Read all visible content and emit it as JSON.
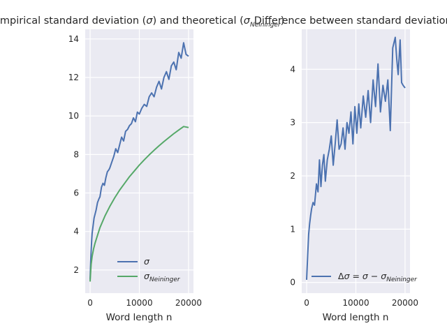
{
  "chart_data": [
    {
      "type": "line",
      "title": "Empirical standard deviation (σ) and theoretical (σ_Neininger)",
      "title_parts": [
        "Empirical standard deviation (",
        "σ",
        ") and theoretical (",
        "σ",
        "Neininger",
        ")"
      ],
      "xlabel": "Word length n",
      "ylabel": "",
      "xlim": [
        -1000,
        21000
      ],
      "ylim": [
        0.8,
        14.5
      ],
      "x_ticks": [
        0,
        10000,
        20000
      ],
      "y_ticks": [
        2,
        4,
        6,
        8,
        10,
        12,
        14
      ],
      "grid": true,
      "legend": "lower-right",
      "series": [
        {
          "name": "σ",
          "color": "#4c72b0",
          "x": [
            0,
            100,
            200,
            300,
            400,
            600,
            800,
            1000,
            1200,
            1500,
            1800,
            2000,
            2300,
            2600,
            2900,
            3200,
            3500,
            3800,
            4000,
            4400,
            4800,
            5200,
            5600,
            6000,
            6400,
            6800,
            7200,
            7600,
            8000,
            8400,
            8800,
            9200,
            9600,
            10000,
            10500,
            11000,
            11500,
            12000,
            12500,
            13000,
            13500,
            14000,
            14500,
            15000,
            15500,
            16000,
            16500,
            17000,
            17500,
            18000,
            18500,
            19000,
            19500,
            20000
          ],
          "values": [
            1.5,
            2.4,
            3.0,
            3.5,
            3.9,
            4.3,
            4.7,
            4.9,
            5.1,
            5.5,
            5.7,
            5.8,
            6.3,
            6.5,
            6.4,
            6.8,
            7.1,
            7.2,
            7.3,
            7.6,
            7.9,
            8.3,
            8.1,
            8.5,
            8.9,
            8.7,
            9.2,
            9.3,
            9.5,
            9.6,
            9.9,
            9.7,
            10.2,
            10.1,
            10.4,
            10.6,
            10.5,
            11.0,
            11.2,
            11.0,
            11.5,
            11.8,
            11.4,
            12.0,
            12.3,
            11.9,
            12.6,
            12.8,
            12.4,
            13.3,
            13.0,
            13.8,
            13.2,
            13.1
          ]
        },
        {
          "name": "σ_Neininger",
          "name_parts": [
            "σ",
            "Neininger"
          ],
          "color": "#55a868",
          "x": [
            0,
            100,
            200,
            400,
            700,
            1000,
            1500,
            2000,
            3000,
            4000,
            5000,
            6000,
            7000,
            8000,
            9000,
            10000,
            11000,
            12000,
            13000,
            14000,
            15000,
            16000,
            17000,
            18000,
            19000,
            20000
          ],
          "values": [
            1.4,
            1.9,
            2.3,
            2.7,
            3.1,
            3.4,
            3.8,
            4.2,
            4.8,
            5.3,
            5.75,
            6.15,
            6.5,
            6.85,
            7.15,
            7.45,
            7.72,
            7.98,
            8.22,
            8.45,
            8.67,
            8.88,
            9.08,
            9.27,
            9.45,
            9.4
          ]
        }
      ]
    },
    {
      "type": "line",
      "title": "Difference between standard deviations",
      "xlabel": "Word length n",
      "ylabel": "",
      "xlim": [
        -1000,
        21000
      ],
      "ylim": [
        -0.2,
        4.75
      ],
      "x_ticks": [
        0,
        10000,
        20000
      ],
      "y_ticks": [
        0,
        1,
        2,
        3,
        4
      ],
      "grid": true,
      "legend": "lower-right",
      "series": [
        {
          "name": "Δσ = σ − σ_Neininger",
          "name_parts": [
            "Δ",
            "σ",
            " = ",
            "σ",
            " − ",
            "σ",
            "Neininger"
          ],
          "color": "#4c72b0",
          "x": [
            0,
            200,
            400,
            600,
            800,
            1000,
            1300,
            1600,
            2000,
            2300,
            2600,
            2900,
            3200,
            3500,
            3800,
            4200,
            4600,
            5000,
            5400,
            5800,
            6200,
            6600,
            7000,
            7400,
            7800,
            8200,
            8600,
            9000,
            9400,
            9800,
            10200,
            10600,
            11000,
            11500,
            12000,
            12500,
            13000,
            13500,
            14000,
            14500,
            15000,
            15500,
            16000,
            16500,
            17000,
            17500,
            18000,
            18300,
            18600,
            19000,
            19300,
            19600,
            20000
          ],
          "values": [
            0.05,
            0.5,
            0.9,
            1.1,
            1.25,
            1.38,
            1.5,
            1.45,
            1.85,
            1.7,
            2.3,
            1.8,
            2.2,
            2.4,
            1.9,
            2.3,
            2.5,
            2.75,
            2.2,
            2.6,
            3.05,
            2.5,
            2.6,
            2.9,
            2.5,
            3.0,
            2.8,
            3.2,
            2.6,
            3.3,
            2.8,
            3.35,
            2.9,
            3.5,
            3.1,
            3.6,
            3.0,
            3.8,
            3.3,
            4.1,
            3.2,
            3.7,
            3.4,
            3.8,
            2.85,
            4.4,
            4.6,
            4.2,
            3.9,
            4.55,
            3.75,
            3.7,
            3.65
          ]
        }
      ]
    }
  ]
}
